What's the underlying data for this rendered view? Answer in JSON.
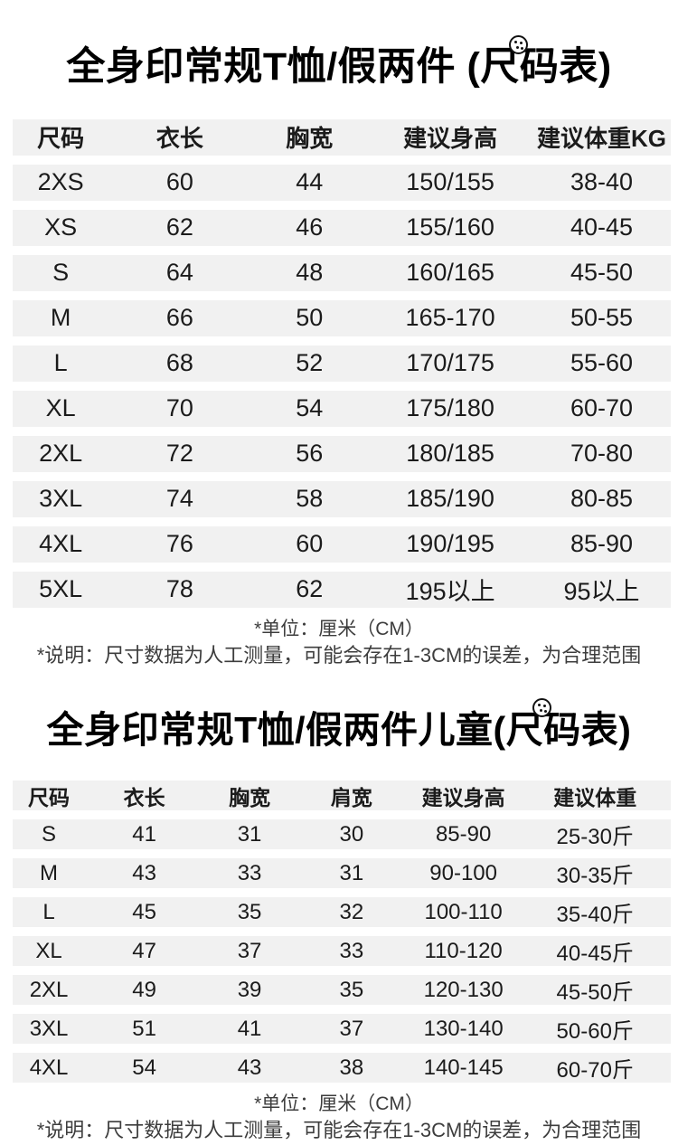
{
  "colors": {
    "background": "#ffffff",
    "row_band": "#f1f1f1",
    "title_text": "#000000",
    "cell_text": "#1b1b1b",
    "note_text": "#3d3d3d"
  },
  "adult": {
    "title_pre": "全身印常规T恤/假两件 (",
    "title_ruler": "尺",
    "title_post": "码表)",
    "badge_icon": "logo-badge",
    "table": {
      "headers": [
        "尺码",
        "衣长",
        "胸宽",
        "建议身高",
        "建议体重KG"
      ],
      "rows": [
        [
          "2XS",
          "60",
          "44",
          "150/155",
          "38-40"
        ],
        [
          "XS",
          "62",
          "46",
          "155/160",
          "40-45"
        ],
        [
          "S",
          "64",
          "48",
          "160/165",
          "45-50"
        ],
        [
          "M",
          "66",
          "50",
          "165-170",
          "50-55"
        ],
        [
          "L",
          "68",
          "52",
          "170/175",
          "55-60"
        ],
        [
          "XL",
          "70",
          "54",
          "175/180",
          "60-70"
        ],
        [
          "2XL",
          "72",
          "56",
          "180/185",
          "70-80"
        ],
        [
          "3XL",
          "74",
          "58",
          "185/190",
          "80-85"
        ],
        [
          "4XL",
          "76",
          "60",
          "190/195",
          "85-90"
        ],
        [
          "5XL",
          "78",
          "62",
          "195以上",
          "95以上"
        ]
      ]
    },
    "unit_note": "*单位：厘米（CM）",
    "disclaimer_note": "*说明：尺寸数据为人工测量，可能会存在1-3CM的误差，为合理范围"
  },
  "kids": {
    "title_pre": "全身印常规T恤/假两件儿童(",
    "title_ruler": "尺",
    "title_post": "码表)",
    "badge_icon": "logo-badge",
    "table": {
      "headers": [
        "尺码",
        "衣长",
        "胸宽",
        "肩宽",
        "建议身高",
        "建议体重"
      ],
      "rows": [
        [
          "S",
          "41",
          "31",
          "30",
          "85-90",
          "25-30斤"
        ],
        [
          "M",
          "43",
          "33",
          "31",
          "90-100",
          "30-35斤"
        ],
        [
          "L",
          "45",
          "35",
          "32",
          "100-110",
          "35-40斤"
        ],
        [
          "XL",
          "47",
          "37",
          "33",
          "110-120",
          "40-45斤"
        ],
        [
          "2XL",
          "49",
          "39",
          "35",
          "120-130",
          "45-50斤"
        ],
        [
          "3XL",
          "51",
          "41",
          "37",
          "130-140",
          "50-60斤"
        ],
        [
          "4XL",
          "54",
          "43",
          "38",
          "140-145",
          "60-70斤"
        ]
      ]
    },
    "unit_note": "*单位：厘米（CM）",
    "disclaimer_note": "*说明：尺寸数据为人工测量，可能会存在1-3CM的误差，为合理范围"
  }
}
